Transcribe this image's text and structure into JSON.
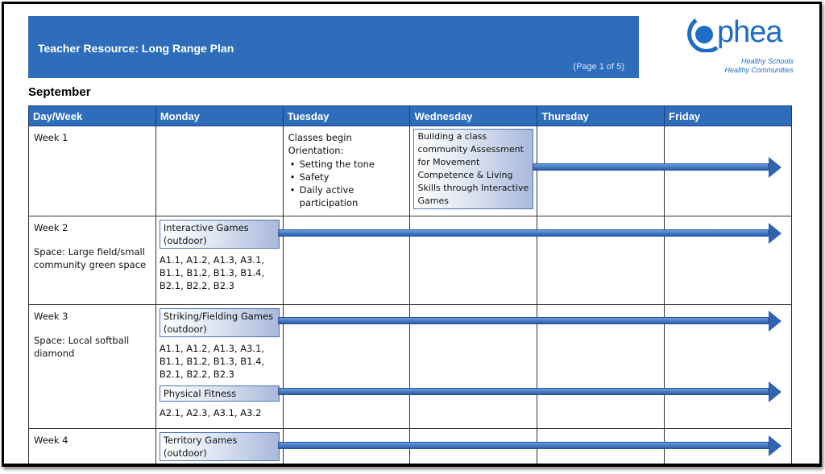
{
  "header": {
    "title": "Teacher Resource: Long Range Plan",
    "page": "(Page 1 of 5)"
  },
  "logo": {
    "word": "phea",
    "tag1": "Healthy Schools",
    "tag2": "Healthy Communities",
    "color": "#1f6cc4"
  },
  "month": "September",
  "columns": [
    "Day/Week",
    "Monday",
    "Tuesday",
    "Wednesday",
    "Thursday",
    "Friday"
  ],
  "rows": [
    {
      "week": "Week 1",
      "tuesday": {
        "line1": "Classes begin",
        "line2": "Orientation:",
        "bullets": [
          "Setting the tone",
          "Safety",
          "Daily active participation"
        ]
      },
      "wednesday_box": "Building a class community Assessment for Movement Competence & Living Skills through Interactive Games"
    },
    {
      "week": "Week 2",
      "space": "Space: Large field/small community green space",
      "activity": "Interactive Games (outdoor)",
      "codes": "A1.1, A1.2, A1.3, A3.1, B1.1, B1.2, B1.3, B1.4, B2.1, B2.2, B2.3"
    },
    {
      "week": "Week 3",
      "space": "Space: Local softball diamond",
      "activity": "Striking/Fielding Games (outdoor)",
      "codes": "A1.1, A1.2, A1.3, A3.1, B1.1, B1.2, B1.3, B1.4, B2.1, B2.2, B2.3",
      "activity2": "Physical Fitness",
      "codes2": "A2.1, A2.3, A3.1, A3.2"
    },
    {
      "week": "Week 4",
      "activity": "Territory Games (outdoor)"
    }
  ],
  "colors": {
    "header": "#2d6dbb",
    "arrow": "#2f64b0"
  }
}
